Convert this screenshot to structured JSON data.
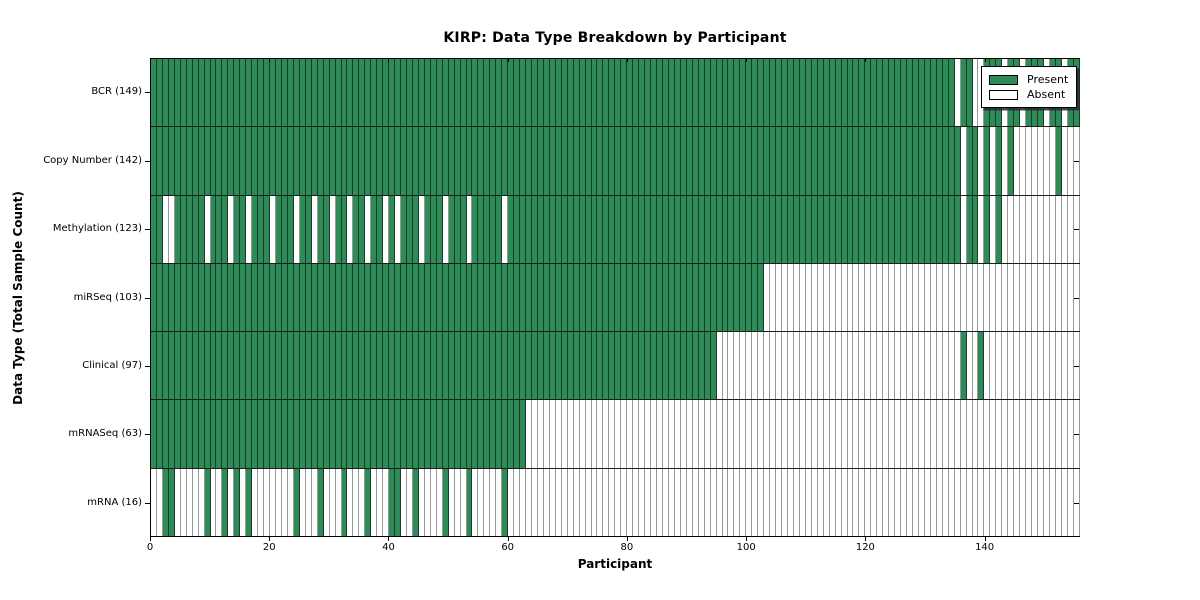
{
  "title": "KIRP: Data Type Breakdown by Participant",
  "axes": {
    "xlabel": "Participant",
    "ylabel": "Data Type (Total Sample Count)"
  },
  "legend": {
    "present_label": "Present",
    "absent_label": "Absent"
  },
  "colors": {
    "present": "#2e8b57",
    "absent": "#ffffff"
  },
  "chart_data": {
    "type": "heatmap",
    "title": "KIRP: Data Type Breakdown by Participant",
    "xlabel": "Participant",
    "ylabel": "Data Type (Total Sample Count)",
    "legend_entries": [
      "Present",
      "Absent"
    ],
    "legend_position": "upper right",
    "n_participants": 156,
    "x_ticks": [
      0,
      20,
      40,
      60,
      80,
      100,
      120,
      140
    ],
    "xlim": [
      0,
      156
    ],
    "grid": false,
    "rows": [
      {
        "data_type": "BCR",
        "label": "BCR (149)",
        "present_count": 149,
        "present_ranges": [
          [
            0,
            134
          ],
          [
            136,
            137
          ],
          [
            140,
            142
          ],
          [
            144,
            145
          ],
          [
            147,
            149
          ],
          [
            151,
            152
          ],
          [
            154,
            155
          ]
        ]
      },
      {
        "data_type": "Copy Number",
        "label": "Copy Number (142)",
        "present_count": 142,
        "present_ranges": [
          [
            0,
            135
          ],
          [
            137,
            138
          ],
          [
            140,
            140
          ],
          [
            142,
            142
          ],
          [
            144,
            144
          ],
          [
            152,
            152
          ]
        ]
      },
      {
        "data_type": "Methylation",
        "label": "Methylation (123)",
        "present_count": 123,
        "present_ranges": [
          [
            0,
            1
          ],
          [
            4,
            8
          ],
          [
            10,
            12
          ],
          [
            14,
            15
          ],
          [
            17,
            19
          ],
          [
            21,
            23
          ],
          [
            25,
            26
          ],
          [
            28,
            29
          ],
          [
            31,
            32
          ],
          [
            34,
            35
          ],
          [
            37,
            38
          ],
          [
            40,
            40
          ],
          [
            42,
            44
          ],
          [
            46,
            48
          ],
          [
            50,
            52
          ],
          [
            54,
            58
          ],
          [
            60,
            135
          ],
          [
            137,
            138
          ],
          [
            140,
            140
          ],
          [
            142,
            142
          ]
        ]
      },
      {
        "data_type": "miRSeq",
        "label": "miRSeq (103)",
        "present_count": 103,
        "present_ranges": [
          [
            0,
            102
          ]
        ]
      },
      {
        "data_type": "Clinical",
        "label": "Clinical (97)",
        "present_count": 97,
        "present_ranges": [
          [
            0,
            94
          ],
          [
            136,
            136
          ],
          [
            139,
            139
          ]
        ]
      },
      {
        "data_type": "mRNASeq",
        "label": "mRNASeq (63)",
        "present_count": 63,
        "present_ranges": [
          [
            0,
            62
          ]
        ]
      },
      {
        "data_type": "mRNA",
        "label": "mRNA (16)",
        "present_count": 16,
        "present_ranges": [
          [
            2,
            3
          ],
          [
            9,
            9
          ],
          [
            12,
            12
          ],
          [
            14,
            14
          ],
          [
            16,
            16
          ],
          [
            24,
            24
          ],
          [
            28,
            28
          ],
          [
            32,
            32
          ],
          [
            36,
            36
          ],
          [
            40,
            41
          ],
          [
            44,
            44
          ],
          [
            49,
            49
          ],
          [
            53,
            53
          ],
          [
            59,
            59
          ]
        ]
      }
    ]
  }
}
